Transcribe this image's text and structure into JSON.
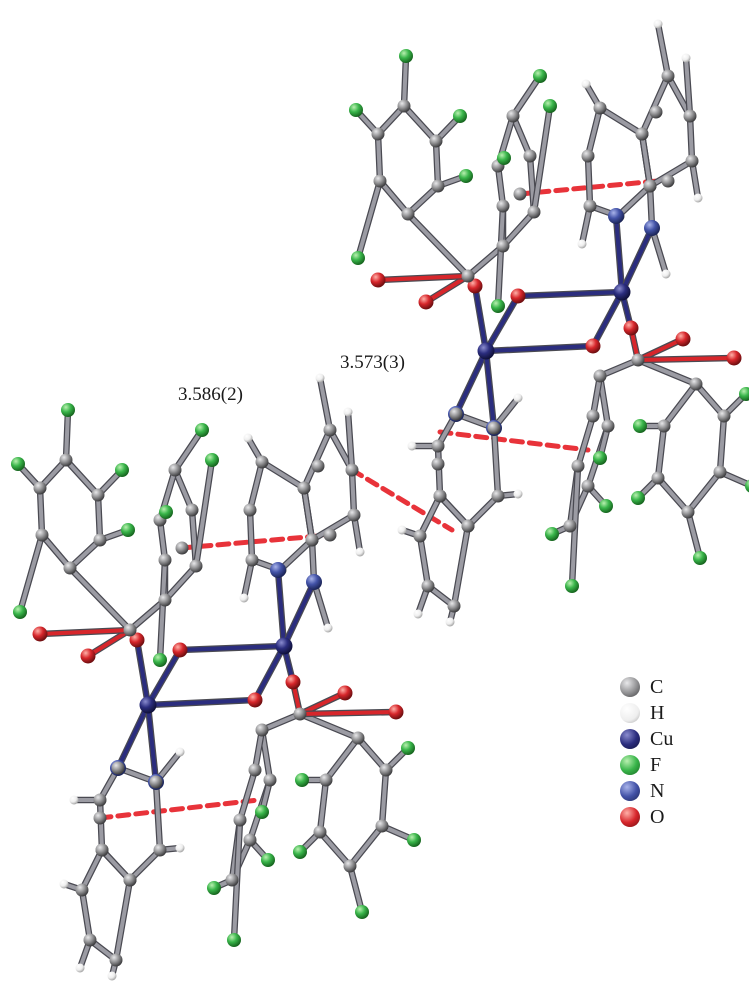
{
  "annotations": {
    "contact_a": "3.586(2)",
    "contact_b": "3.573(3)"
  },
  "legend": [
    {
      "symbol": "C",
      "color": "#8e8e90"
    },
    {
      "symbol": "H",
      "color": "#f0f0f0"
    },
    {
      "symbol": "Cu",
      "color": "#2b2d7e"
    },
    {
      "symbol": "F",
      "color": "#39b54a"
    },
    {
      "symbol": "N",
      "color": "#4353a8"
    },
    {
      "symbol": "O",
      "color": "#d7262b"
    }
  ],
  "colors": {
    "bond_carbon": "#9b9ba3",
    "bond_cu": "#2b2d7e",
    "bond_oxygen": "#d7262b",
    "contact_line": "#e8333a"
  }
}
